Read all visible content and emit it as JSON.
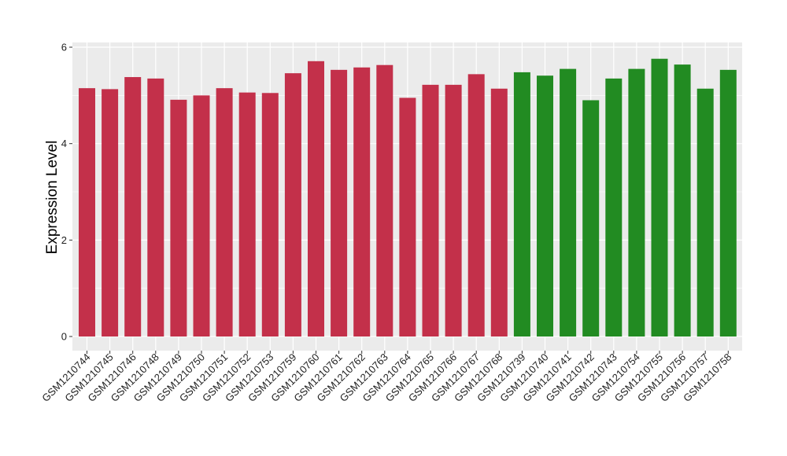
{
  "chart_data": {
    "type": "bar",
    "ylabel": "Expression Level",
    "xlabel": "",
    "ylim": [
      0,
      6.05
    ],
    "yticks": [
      0,
      2,
      4,
      6
    ],
    "grid": true,
    "legend": "none",
    "colors": {
      "panel_background": "#ebebeb",
      "gridline": "#ffffff"
    },
    "categories": [
      "GSM1210744",
      "GSM1210745",
      "GSM1210746",
      "GSM1210748",
      "GSM1210749",
      "GSM1210750",
      "GSM1210751",
      "GSM1210752",
      "GSM1210753",
      "GSM1210759",
      "GSM1210760",
      "GSM1210761",
      "GSM1210762",
      "GSM1210763",
      "GSM1210764",
      "GSM1210765",
      "GSM1210766",
      "GSM1210767",
      "GSM1210768",
      "GSM1210739",
      "GSM1210740",
      "GSM1210741",
      "GSM1210742",
      "GSM1210743",
      "GSM1210754",
      "GSM1210755",
      "GSM1210756",
      "GSM1210757",
      "GSM1210758"
    ],
    "values": [
      5.15,
      5.13,
      5.38,
      5.35,
      4.91,
      5.0,
      5.15,
      5.06,
      5.05,
      5.46,
      5.71,
      5.53,
      5.58,
      5.63,
      4.95,
      5.22,
      5.22,
      5.44,
      5.14,
      5.48,
      5.41,
      5.55,
      4.9,
      5.35,
      5.55,
      5.76,
      5.64,
      5.14,
      5.53
    ],
    "bar_colors": [
      "#c3304a",
      "#c3304a",
      "#c3304a",
      "#c3304a",
      "#c3304a",
      "#c3304a",
      "#c3304a",
      "#c3304a",
      "#c3304a",
      "#c3304a",
      "#c3304a",
      "#c3304a",
      "#c3304a",
      "#c3304a",
      "#c3304a",
      "#c3304a",
      "#c3304a",
      "#c3304a",
      "#c3304a",
      "#228b22",
      "#228b22",
      "#228b22",
      "#228b22",
      "#228b22",
      "#228b22",
      "#228b22",
      "#228b22",
      "#228b22",
      "#228b22"
    ]
  }
}
